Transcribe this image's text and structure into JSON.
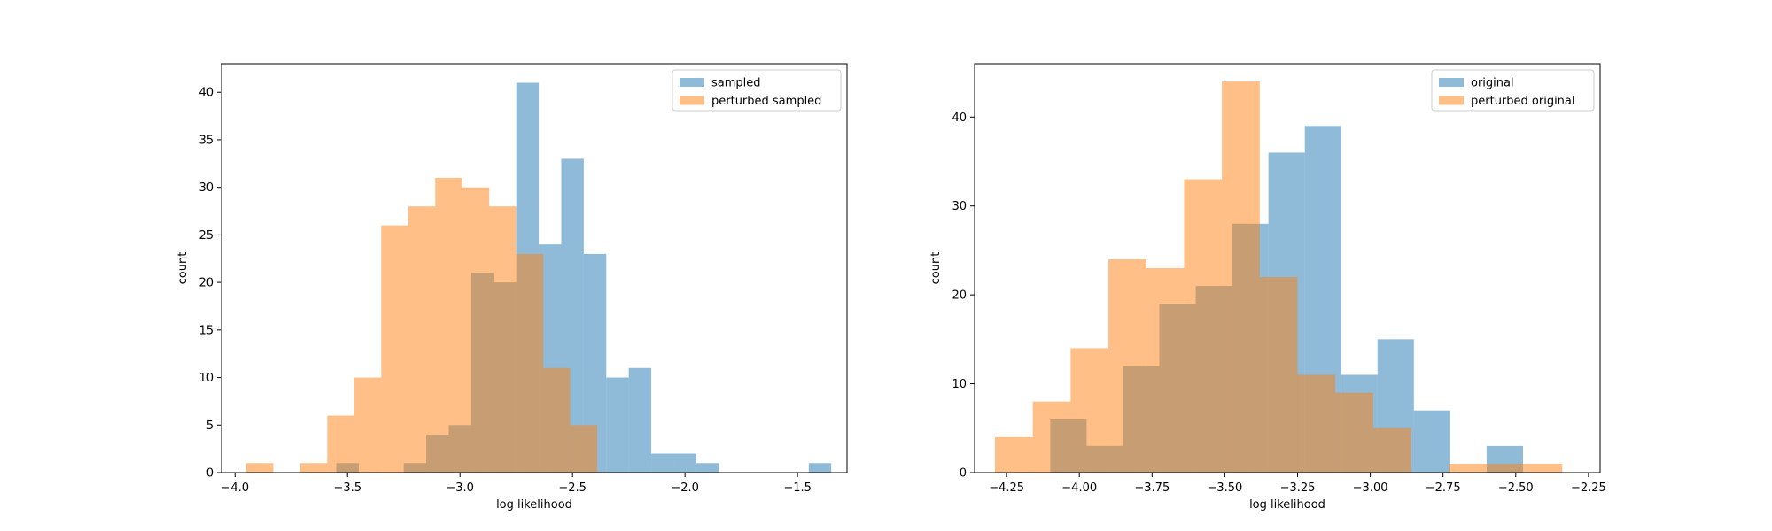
{
  "chart_data": [
    {
      "type": "histogram",
      "title": "",
      "xlabel": "log likelihood",
      "ylabel": "count",
      "xlim": [
        -4.06,
        -1.28
      ],
      "ylim": [
        0,
        43
      ],
      "xticks": [
        -4.0,
        -3.5,
        -3.0,
        -2.5,
        -2.0,
        -1.5
      ],
      "xtick_labels": [
        "−4.0",
        "−3.5",
        "−3.0",
        "−2.5",
        "−2.0",
        "−1.5"
      ],
      "yticks": [
        0,
        5,
        10,
        15,
        20,
        25,
        30,
        35,
        40
      ],
      "ytick_labels": [
        "0",
        "5",
        "10",
        "15",
        "20",
        "25",
        "30",
        "35",
        "40"
      ],
      "grid": false,
      "legend_position": "top-right",
      "series": [
        {
          "name": "sampled",
          "color": "#1f77b4",
          "alpha": 0.5,
          "edges": [
            -3.55,
            -3.45,
            -3.35,
            -3.25,
            -3.15,
            -3.05,
            -2.95,
            -2.85,
            -2.75,
            -2.65,
            -2.55,
            -2.45,
            -2.35,
            -2.25,
            -2.15,
            -2.05,
            -1.95,
            -1.85,
            -1.75,
            -1.65,
            -1.55,
            -1.45,
            -1.35
          ],
          "counts": [
            1,
            0,
            0,
            1,
            4,
            5,
            21,
            20,
            41,
            24,
            33,
            23,
            10,
            11,
            2,
            2,
            1,
            0,
            0,
            0,
            0,
            1
          ]
        },
        {
          "name": "perturbed sampled",
          "color": "#ff7f0e",
          "alpha": 0.5,
          "edges": [
            -3.95,
            -3.83,
            -3.71,
            -3.59,
            -3.47,
            -3.35,
            -3.23,
            -3.11,
            -2.99,
            -2.87,
            -2.75,
            -2.63,
            -2.51,
            -2.39
          ],
          "counts": [
            1,
            0,
            1,
            6,
            10,
            26,
            28,
            31,
            30,
            28,
            23,
            11,
            5
          ]
        }
      ]
    },
    {
      "type": "histogram",
      "title": "",
      "xlabel": "log likelihood",
      "ylabel": "count",
      "xlim": [
        -4.36,
        -2.21
      ],
      "ylim": [
        0,
        46
      ],
      "xticks": [
        -4.25,
        -4.0,
        -3.75,
        -3.5,
        -3.25,
        -3.0,
        -2.75,
        -2.5,
        -2.25
      ],
      "xtick_labels": [
        "−4.25",
        "−4.00",
        "−3.75",
        "−3.50",
        "−3.25",
        "−3.00",
        "−2.75",
        "−2.50",
        "−2.25"
      ],
      "yticks": [
        0,
        10,
        20,
        30,
        40
      ],
      "ytick_labels": [
        "0",
        "10",
        "20",
        "30",
        "40"
      ],
      "grid": false,
      "legend_position": "top-right",
      "series": [
        {
          "name": "original",
          "color": "#1f77b4",
          "alpha": 0.5,
          "edges": [
            -4.1,
            -3.975,
            -3.85,
            -3.725,
            -3.6,
            -3.475,
            -3.35,
            -3.225,
            -3.1,
            -2.975,
            -2.85,
            -2.725,
            -2.6,
            -2.475,
            -2.35
          ],
          "counts": [
            6,
            3,
            12,
            19,
            21,
            28,
            36,
            39,
            11,
            15,
            7,
            0,
            3,
            0
          ]
        },
        {
          "name": "perturbed original",
          "color": "#ff7f0e",
          "alpha": 0.5,
          "edges": [
            -4.29,
            -4.16,
            -4.03,
            -3.9,
            -3.77,
            -3.64,
            -3.51,
            -3.38,
            -3.25,
            -3.12,
            -2.99,
            -2.86,
            -2.73,
            -2.6,
            -2.47,
            -2.34
          ],
          "counts": [
            4,
            8,
            14,
            24,
            23,
            33,
            44,
            22,
            11,
            9,
            5,
            0,
            1,
            1,
            1
          ]
        }
      ]
    }
  ]
}
